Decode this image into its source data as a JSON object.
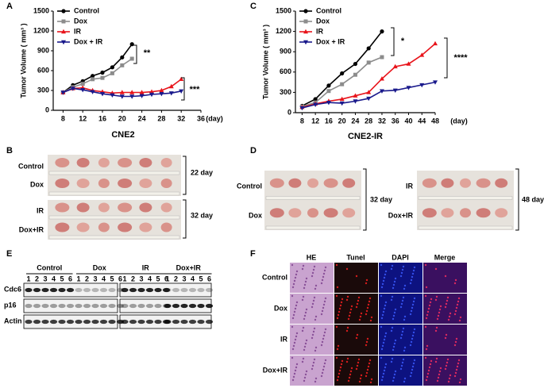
{
  "panel_labels": [
    "A",
    "B",
    "C",
    "D",
    "E",
    "F"
  ],
  "chart_data": [
    {
      "type": "line",
      "title": "CNE2",
      "y_label": "Tumor Volume ( mm³ )",
      "x_label": "(day)",
      "x": [
        8,
        10,
        12,
        14,
        16,
        18,
        20,
        22,
        24,
        26,
        28,
        30,
        32
      ],
      "xlim": [
        6,
        36
      ],
      "xticks": [
        8,
        12,
        16,
        20,
        24,
        28,
        32,
        36
      ],
      "ylim": [
        0,
        1500
      ],
      "yticks": [
        0,
        300,
        600,
        900,
        1200,
        1500
      ],
      "annotations": [
        "**",
        "***"
      ],
      "series": [
        {
          "name": "Control",
          "color": "#000000",
          "marker": "circle",
          "values": [
            270,
            380,
            440,
            520,
            570,
            650,
            800,
            1000,
            null,
            null,
            null,
            null,
            null
          ]
        },
        {
          "name": "Dox",
          "color": "#8c8c8c",
          "marker": "square",
          "values": [
            270,
            350,
            400,
            470,
            490,
            560,
            680,
            780,
            null,
            null,
            null,
            null,
            null
          ]
        },
        {
          "name": "IR",
          "color": "#e8141b",
          "marker": "triangle-up",
          "values": [
            270,
            330,
            340,
            300,
            280,
            260,
            270,
            270,
            270,
            280,
            300,
            360,
            470
          ]
        },
        {
          "name": "Dox + IR",
          "color": "#1a1a8c",
          "marker": "triangle-down",
          "values": [
            270,
            330,
            310,
            280,
            250,
            230,
            210,
            210,
            220,
            240,
            250,
            260,
            290
          ]
        }
      ]
    },
    {
      "type": "line",
      "title": "CNE2-IR",
      "y_label": "Tumor Volume ( mm³ )",
      "x_label": "(day)",
      "x": [
        8,
        12,
        16,
        20,
        24,
        28,
        32,
        36,
        40,
        44,
        48
      ],
      "xlim": [
        6,
        48
      ],
      "xticks": [
        8,
        12,
        16,
        20,
        24,
        28,
        32,
        36,
        40,
        44,
        48
      ],
      "ylim": [
        0,
        1500
      ],
      "yticks": [
        0,
        300,
        600,
        900,
        1200,
        1500
      ],
      "annotations": [
        "*",
        "****"
      ],
      "series": [
        {
          "name": "Control",
          "color": "#000000",
          "marker": "circle",
          "values": [
            100,
            200,
            400,
            580,
            720,
            950,
            1200,
            null,
            null,
            null,
            null
          ]
        },
        {
          "name": "Dox",
          "color": "#8c8c8c",
          "marker": "square",
          "values": [
            90,
            150,
            320,
            420,
            560,
            740,
            820,
            null,
            null,
            null,
            null
          ]
        },
        {
          "name": "IR",
          "color": "#e8141b",
          "marker": "triangle-up",
          "values": [
            80,
            130,
            170,
            200,
            250,
            300,
            500,
            680,
            720,
            850,
            1020
          ]
        },
        {
          "name": "Dox + IR",
          "color": "#1a1a8c",
          "marker": "triangle-down",
          "values": [
            70,
            120,
            150,
            140,
            170,
            210,
            320,
            330,
            370,
            410,
            450
          ]
        }
      ]
    }
  ],
  "photos_b": {
    "rows": [
      "Control",
      "Dox",
      "IR",
      "Dox+IR"
    ],
    "days": [
      "22 day",
      "32 day"
    ]
  },
  "photos_d": {
    "left_rows": [
      "Control",
      "Dox"
    ],
    "left_day": "32 day",
    "right_rows": [
      "IR",
      "Dox+IR"
    ],
    "right_day": "48 day"
  },
  "blot": {
    "groups": [
      {
        "name": "Control",
        "lanes": [
          1,
          2,
          3,
          4,
          5,
          6
        ]
      },
      {
        "name": "Dox",
        "lanes": [
          1,
          2,
          3,
          4,
          5,
          6
        ]
      },
      {
        "name": "IR",
        "lanes": [
          1,
          2,
          3,
          4,
          5,
          6
        ]
      },
      {
        "name": "Dox+IR",
        "lanes": [
          1,
          2,
          3,
          4,
          5,
          6
        ]
      }
    ],
    "rows": [
      "Cdc6",
      "p16",
      "Actin"
    ]
  },
  "staining": {
    "columns": [
      "HE",
      "Tunel",
      "DAPI",
      "Merge"
    ],
    "rows": [
      "Control",
      "Dox",
      "IR",
      "Dox+IR"
    ]
  }
}
